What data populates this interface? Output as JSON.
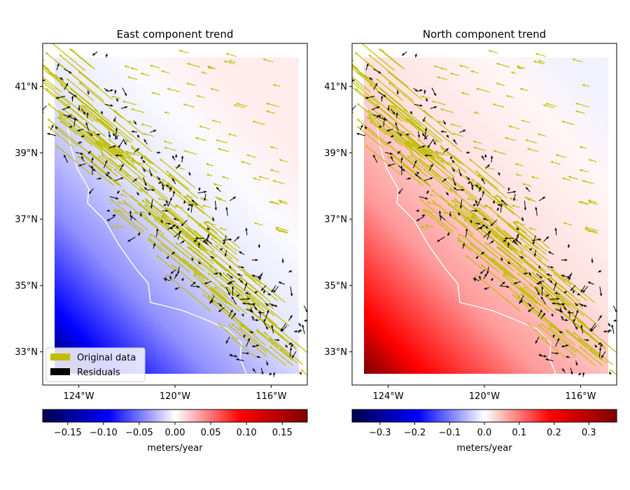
{
  "figure": {
    "background": "#ffffff"
  },
  "colors": {
    "original_arrows": "#bfbf00",
    "residual_arrows": "#000000",
    "coastline": "#ffffff",
    "colormap": [
      "#00004c",
      "#0000ff",
      "#ffffff",
      "#ff0000",
      "#800000"
    ]
  },
  "legend": {
    "location": "lower-left",
    "items": [
      "Original data",
      "Residuals"
    ]
  },
  "chart_data": [
    {
      "type": "heatmap",
      "subtype": "vector-field-map",
      "title": "East component trend",
      "xlim": [
        -125.5,
        -114.5
      ],
      "ylim": [
        32.0,
        42.3
      ],
      "x_ticks": [
        -124,
        -120,
        -116
      ],
      "x_tick_labels": [
        "124°W",
        "120°W",
        "116°W"
      ],
      "y_ticks": [
        33,
        35,
        37,
        39,
        41
      ],
      "y_tick_labels": [
        "33°N",
        "35°N",
        "37°N",
        "39°N",
        "41°N"
      ],
      "trend_grid_extent": {
        "lon": [
          -124.5,
          -115.0
        ],
        "lat": [
          32.4,
          42.0
        ]
      },
      "colorbar": {
        "label": "meters/year",
        "range": [
          -0.185,
          0.185
        ],
        "ticks": [
          -0.15,
          -0.1,
          -0.05,
          0.0,
          0.05,
          0.1,
          0.15
        ],
        "tick_labels": [
          "−0.15",
          "−0.10",
          "−0.05",
          "0.00",
          "0.05",
          "0.10",
          "0.15"
        ]
      },
      "series": [
        {
          "name": "Original data",
          "color": "#bfbf00"
        },
        {
          "name": "Residuals",
          "color": "#000000"
        }
      ]
    },
    {
      "type": "heatmap",
      "subtype": "vector-field-map",
      "title": "North component trend",
      "xlim": [
        -125.5,
        -114.5
      ],
      "ylim": [
        32.0,
        42.3
      ],
      "x_ticks": [
        -124,
        -120,
        -116
      ],
      "x_tick_labels": [
        "124°W",
        "120°W",
        "116°W"
      ],
      "y_ticks": [
        33,
        35,
        37,
        39,
        41
      ],
      "y_tick_labels": [
        "33°N",
        "35°N",
        "37°N",
        "39°N",
        "41°N"
      ],
      "trend_grid_extent": {
        "lon": [
          -124.5,
          -115.0
        ],
        "lat": [
          32.4,
          42.0
        ]
      },
      "colorbar": {
        "label": "meters/year",
        "range": [
          -0.38,
          0.38
        ],
        "ticks": [
          -0.3,
          -0.2,
          -0.1,
          0.0,
          0.1,
          0.2,
          0.3
        ],
        "tick_labels": [
          "−0.3",
          "−0.2",
          "−0.1",
          "0.0",
          "0.1",
          "0.2",
          "0.3"
        ]
      },
      "series": [
        {
          "name": "Original data",
          "color": "#bfbf00"
        },
        {
          "name": "Residuals",
          "color": "#000000"
        }
      ]
    }
  ]
}
